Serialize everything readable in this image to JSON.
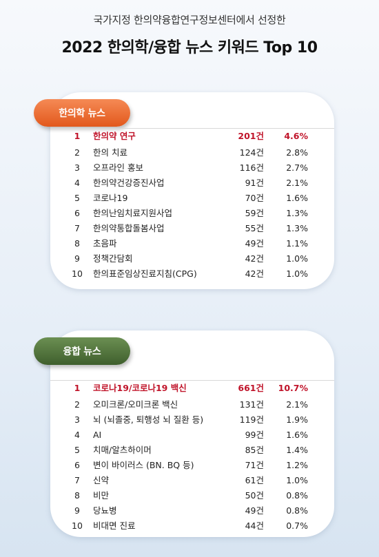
{
  "header": {
    "subtitle": "국가지정 한의약융합연구정보센터에서 선정한",
    "title": "2022 한의학/융합 뉴스 키워드 Top 10"
  },
  "sections": [
    {
      "label": "한의학 뉴스",
      "rows": [
        {
          "rank": "1",
          "keyword": "한의약 연구",
          "count": "201건",
          "percent": "4.6%"
        },
        {
          "rank": "2",
          "keyword": "한의 치료",
          "count": "124건",
          "percent": "2.8%"
        },
        {
          "rank": "3",
          "keyword": "오프라인 홍보",
          "count": "116건",
          "percent": "2.7%"
        },
        {
          "rank": "4",
          "keyword": "한의약건강증진사업",
          "count": "91건",
          "percent": "2.1%"
        },
        {
          "rank": "5",
          "keyword": "코로나19",
          "count": "70건",
          "percent": "1.6%"
        },
        {
          "rank": "6",
          "keyword": "한의난임치료지원사업",
          "count": "59건",
          "percent": "1.3%"
        },
        {
          "rank": "7",
          "keyword": "한의약통합돌봄사업",
          "count": "55건",
          "percent": "1.3%"
        },
        {
          "rank": "8",
          "keyword": "초음파",
          "count": "49건",
          "percent": "1.1%"
        },
        {
          "rank": "9",
          "keyword": "정책간담회",
          "count": "42건",
          "percent": "1.0%"
        },
        {
          "rank": "10",
          "keyword": "한의표준임상진료지침(CPG)",
          "count": "42건",
          "percent": "1.0%"
        }
      ]
    },
    {
      "label": "융합 뉴스",
      "rows": [
        {
          "rank": "1",
          "keyword": "코로나19/코로나19 백신",
          "count": "661건",
          "percent": "10.7%"
        },
        {
          "rank": "2",
          "keyword": "오미크론/오미크론 백신",
          "count": "131건",
          "percent": "2.1%"
        },
        {
          "rank": "3",
          "keyword": "뇌 (뇌졸중, 퇴행성 뇌 질환 등)",
          "count": "119건",
          "percent": "1.9%"
        },
        {
          "rank": "4",
          "keyword": "AI",
          "count": "99건",
          "percent": "1.6%"
        },
        {
          "rank": "5",
          "keyword": "치매/알츠하이머",
          "count": "85건",
          "percent": "1.4%"
        },
        {
          "rank": "6",
          "keyword": "변이 바이러스 (BN. BQ 등)",
          "count": "71건",
          "percent": "1.2%"
        },
        {
          "rank": "7",
          "keyword": "신약",
          "count": "61건",
          "percent": "1.0%"
        },
        {
          "rank": "8",
          "keyword": "비만",
          "count": "50건",
          "percent": "0.8%"
        },
        {
          "rank": "9",
          "keyword": "당뇨병",
          "count": "49건",
          "percent": "0.8%"
        },
        {
          "rank": "10",
          "keyword": "비대면 진료",
          "count": "44건",
          "percent": "0.7%"
        }
      ]
    }
  ],
  "colors": {
    "highlight": "#c0142a",
    "badge_orange": "#e2581c",
    "badge_green": "#3f5f2d"
  }
}
